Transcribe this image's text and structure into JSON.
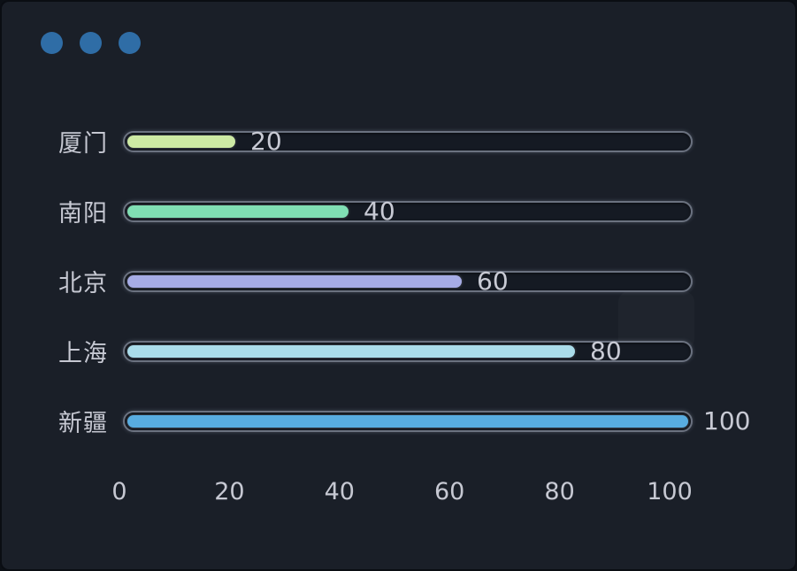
{
  "window": {
    "background_color": "#1a1f28",
    "titlebar_dot_color": "#2f6da6",
    "titlebar_dot_count": 3
  },
  "chart_data": {
    "type": "bar",
    "orientation": "horizontal",
    "title": "",
    "xlabel": "",
    "ylabel": "",
    "categories": [
      "厦门",
      "南阳",
      "北京",
      "上海",
      "新疆"
    ],
    "values": [
      20,
      40,
      60,
      80,
      100
    ],
    "value_labels": [
      "20",
      "40",
      "60",
      "80",
      "100"
    ],
    "bar_colors": [
      "#cdeaa4",
      "#80dfb4",
      "#a6ace6",
      "#aadcea",
      "#58ace0"
    ],
    "x_ticks": [
      "0",
      "20",
      "40",
      "60",
      "80",
      "100"
    ],
    "x_tick_values": [
      0,
      20,
      40,
      60,
      80,
      100
    ],
    "xlim": [
      0,
      100
    ],
    "grid": false,
    "legend": false,
    "track_color": "#151a23",
    "track_border_color": "#6b7280",
    "text_color": "#c6c8d2"
  }
}
